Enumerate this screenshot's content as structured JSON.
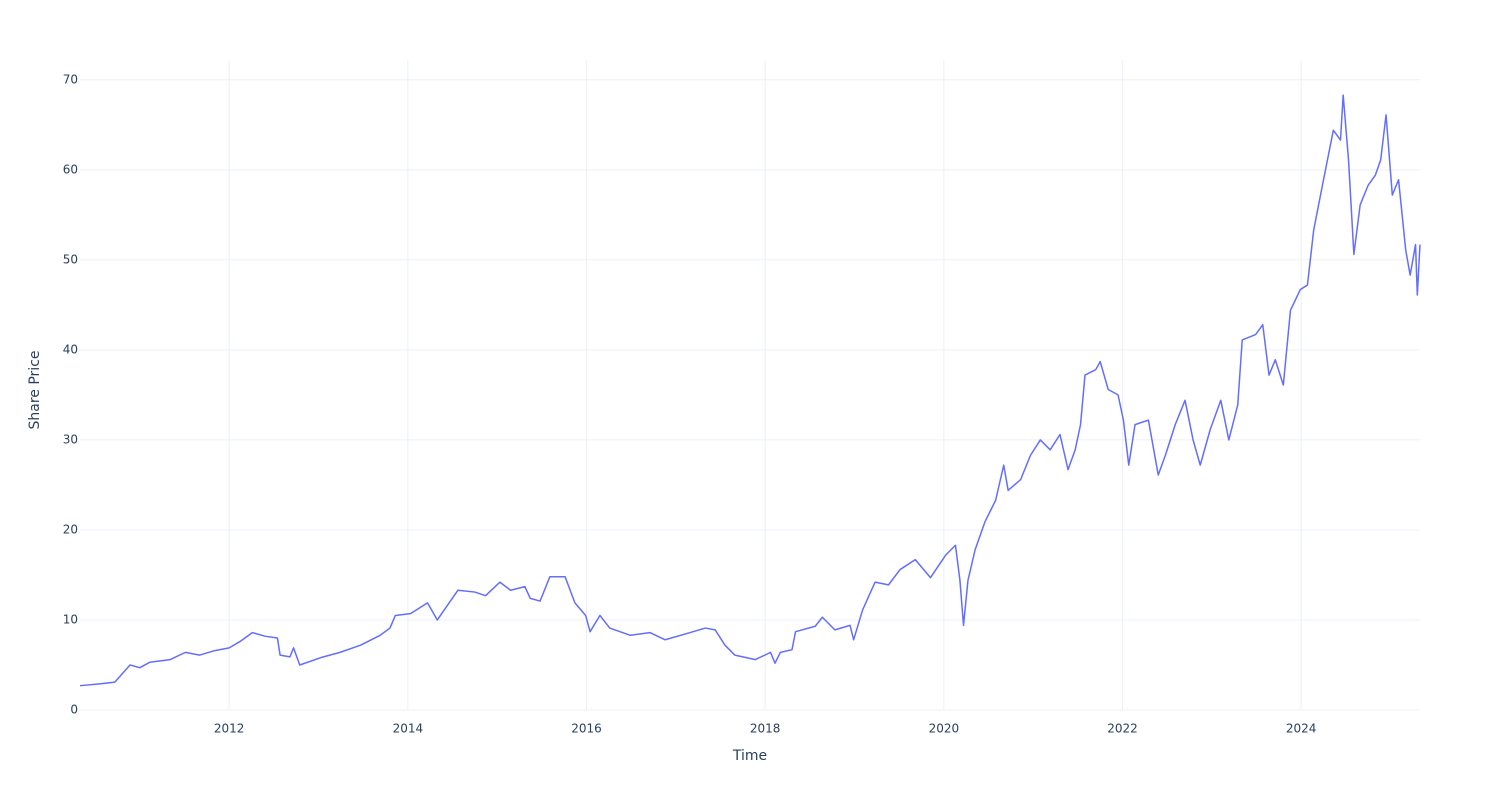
{
  "chart_data": {
    "type": "line",
    "x_label": "Time",
    "y_label": "Share Price",
    "x": [
      2010.33,
      2010.55,
      2010.72,
      2010.89,
      2011.0,
      2011.11,
      2011.34,
      2011.51,
      2011.67,
      2011.84,
      2012.0,
      2012.12,
      2012.26,
      2012.4,
      2012.54,
      2012.57,
      2012.68,
      2012.72,
      2012.79,
      2013.02,
      2013.24,
      2013.47,
      2013.69,
      2013.8,
      2013.86,
      2014.03,
      2014.22,
      2014.33,
      2014.42,
      2014.56,
      2014.75,
      2014.87,
      2015.03,
      2015.15,
      2015.31,
      2015.37,
      2015.48,
      2015.59,
      2015.76,
      2015.87,
      2015.99,
      2016.04,
      2016.15,
      2016.26,
      2016.49,
      2016.71,
      2016.88,
      2017.16,
      2017.33,
      2017.44,
      2017.55,
      2017.66,
      2017.89,
      2018.06,
      2018.11,
      2018.17,
      2018.3,
      2018.34,
      2018.56,
      2018.64,
      2018.78,
      2018.95,
      2018.99,
      2019.09,
      2019.23,
      2019.38,
      2019.51,
      2019.68,
      2019.85,
      2020.02,
      2020.13,
      2020.18,
      2020.22,
      2020.27,
      2020.35,
      2020.46,
      2020.58,
      2020.67,
      2020.72,
      2020.86,
      2020.97,
      2021.08,
      2021.19,
      2021.3,
      2021.39,
      2021.47,
      2021.53,
      2021.58,
      2021.7,
      2021.75,
      2021.84,
      2021.95,
      2022.01,
      2022.07,
      2022.14,
      2022.29,
      2022.4,
      2022.48,
      2022.59,
      2022.7,
      2022.79,
      2022.87,
      2022.98,
      2023.1,
      2023.19,
      2023.29,
      2023.34,
      2023.49,
      2023.57,
      2023.64,
      2023.71,
      2023.8,
      2023.88,
      2023.99,
      2024.07,
      2024.14,
      2024.25,
      2024.36,
      2024.44,
      2024.47,
      2024.53,
      2024.59,
      2024.66,
      2024.75,
      2024.83,
      2024.89,
      2024.95,
      2025.02,
      2025.09,
      2025.17,
      2025.22,
      2025.28,
      2025.3,
      2025.33
    ],
    "values": [
      2.7,
      2.9,
      3.1,
      5.0,
      4.7,
      5.3,
      5.6,
      6.4,
      6.1,
      6.6,
      6.9,
      7.6,
      8.6,
      8.2,
      8.0,
      6.1,
      5.9,
      6.9,
      5.0,
      5.8,
      6.4,
      7.2,
      8.3,
      9.1,
      10.5,
      10.7,
      11.9,
      10.0,
      11.3,
      13.3,
      13.1,
      12.7,
      14.2,
      13.3,
      13.7,
      12.4,
      12.1,
      14.8,
      14.8,
      11.9,
      10.5,
      8.7,
      10.5,
      9.1,
      8.3,
      8.6,
      7.8,
      8.6,
      9.1,
      8.9,
      7.2,
      6.1,
      5.6,
      6.4,
      5.2,
      6.4,
      6.7,
      8.7,
      9.3,
      10.3,
      8.9,
      9.4,
      7.8,
      11.1,
      14.2,
      13.9,
      15.6,
      16.7,
      14.7,
      17.2,
      18.3,
      14.4,
      9.4,
      14.4,
      17.8,
      20.9,
      23.3,
      27.2,
      24.4,
      25.6,
      28.3,
      30.0,
      28.9,
      30.6,
      26.7,
      28.9,
      31.7,
      37.2,
      37.8,
      38.7,
      35.6,
      35.0,
      32.2,
      27.2,
      31.7,
      32.2,
      26.1,
      28.3,
      31.7,
      34.4,
      30.0,
      27.2,
      31.1,
      34.4,
      30.0,
      33.9,
      41.1,
      41.7,
      42.8,
      37.2,
      38.9,
      36.1,
      44.4,
      46.7,
      47.2,
      53.3,
      58.9,
      64.4,
      63.3,
      68.3,
      61.1,
      50.6,
      56.1,
      58.3,
      59.4,
      61.1,
      66.1,
      57.2,
      58.9,
      51.1,
      48.3,
      51.7,
      46.1,
      51.7
    ],
    "color": "#636efa",
    "xlim": [
      2010.33,
      2025.33
    ],
    "xticks": [
      2012,
      2014,
      2016,
      2018,
      2020,
      2022,
      2024
    ],
    "ylim": [
      0,
      72.2
    ],
    "yticks": [
      0,
      10,
      20,
      30,
      40,
      50,
      60,
      70
    ],
    "grid": true
  }
}
